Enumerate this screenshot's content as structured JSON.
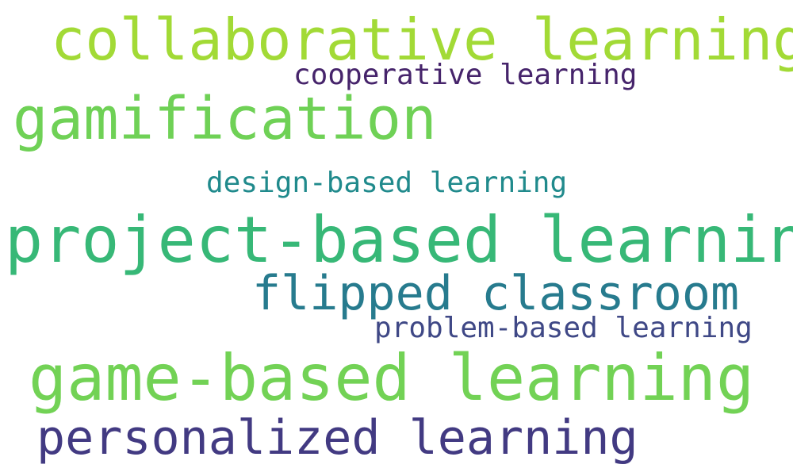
{
  "words": [
    {
      "text": "collaborative learning",
      "color": "#a2da36"
    },
    {
      "text": "cooperative learning",
      "color": "#46246b"
    },
    {
      "text": "gamification",
      "color": "#6fd156"
    },
    {
      "text": "design-based learning",
      "color": "#208a8c"
    },
    {
      "text": "project-based learning",
      "color": "#37b877"
    },
    {
      "text": "flipped classroom",
      "color": "#277b8e"
    },
    {
      "text": "problem-based learning",
      "color": "#3f4886"
    },
    {
      "text": "game-based learning",
      "color": "#72d255"
    },
    {
      "text": "personalized learning",
      "color": "#423a82"
    }
  ]
}
